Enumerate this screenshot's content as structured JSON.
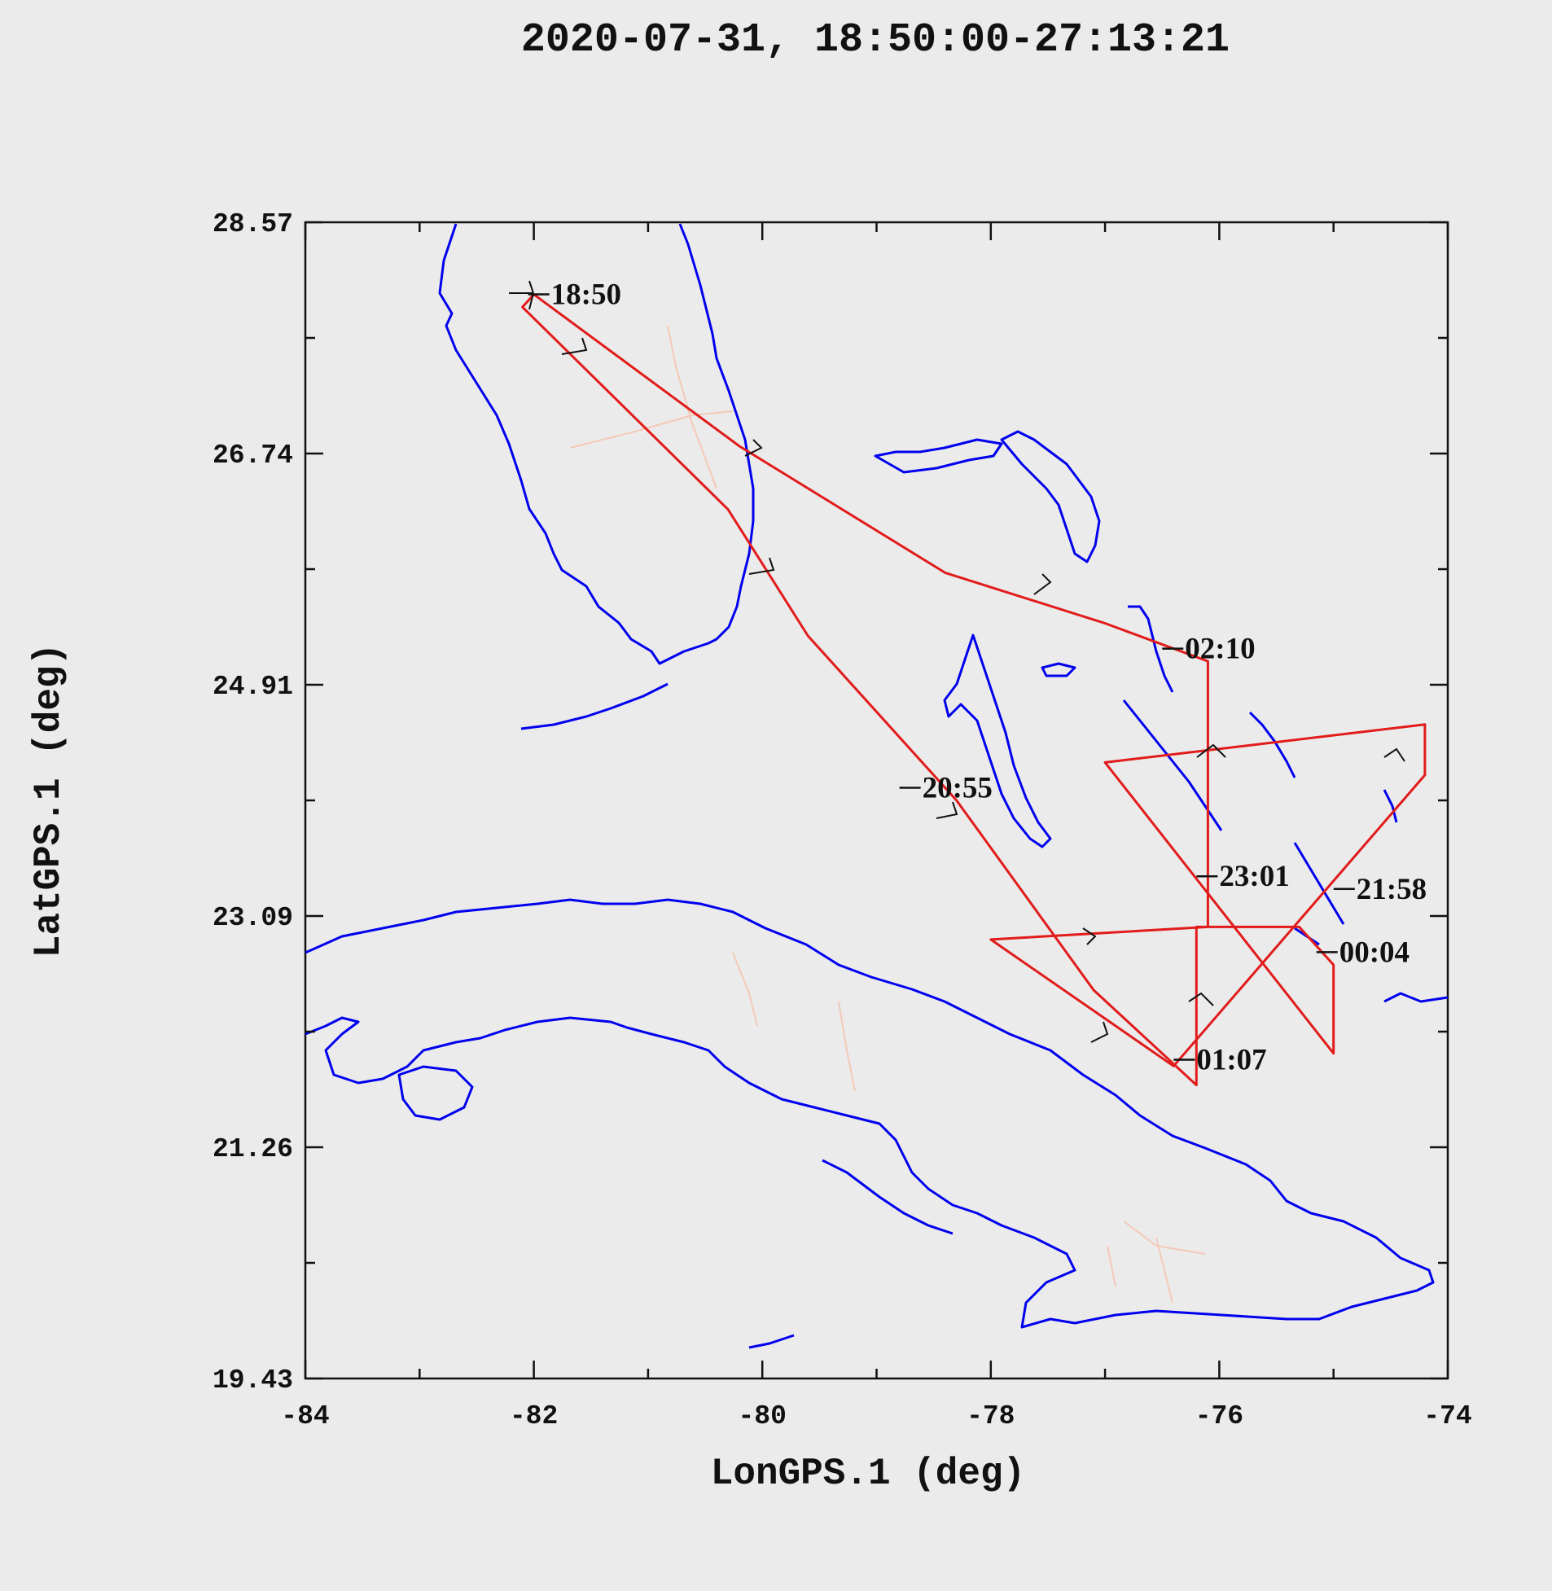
{
  "title": "2020-07-31, 18:50:00-27:13:21",
  "chart_data": {
    "type": "map",
    "xlabel": "LonGPS.1 (deg)",
    "ylabel": "LatGPS.1 (deg)",
    "xlim": [
      -84,
      -74
    ],
    "ylim": [
      19.43,
      28.57
    ],
    "x_ticks": [
      "-84",
      "-82",
      "-80",
      "-78",
      "-76",
      "-74"
    ],
    "y_ticks": [
      "28.57",
      "26.74",
      "24.91",
      "23.09",
      "21.26",
      "19.43"
    ],
    "time_labels": [
      {
        "text": "18:50",
        "lon": -81.85,
        "lat": 28.0
      },
      {
        "text": "02:10",
        "lon": -76.3,
        "lat": 25.2
      },
      {
        "text": "20:55",
        "lon": -78.6,
        "lat": 24.1
      },
      {
        "text": "23:01",
        "lon": -76.0,
        "lat": 23.4
      },
      {
        "text": "21:58",
        "lon": -74.8,
        "lat": 23.3
      },
      {
        "text": "00:04",
        "lon": -74.95,
        "lat": 22.8
      },
      {
        "text": "01:07",
        "lon": -76.2,
        "lat": 21.95
      }
    ],
    "flight_track": [
      [
        -82.0,
        28.0
      ],
      [
        -80.2,
        26.8
      ],
      [
        -78.4,
        25.8
      ],
      [
        -77.0,
        25.4
      ],
      [
        -76.1,
        25.1
      ],
      [
        -76.1,
        23.0
      ],
      [
        -78.0,
        22.9
      ],
      [
        -76.4,
        21.9
      ],
      [
        -74.2,
        24.2
      ],
      [
        -74.2,
        24.6
      ],
      [
        -77.0,
        24.3
      ],
      [
        -75.0,
        22.0
      ],
      [
        -75.0,
        22.7
      ],
      [
        -75.3,
        23.0
      ],
      [
        -76.2,
        23.0
      ],
      [
        -76.2,
        21.75
      ],
      [
        -77.1,
        22.5
      ],
      [
        -78.3,
        24.0
      ],
      [
        -79.6,
        25.3
      ],
      [
        -80.3,
        26.3
      ],
      [
        -82.1,
        27.9
      ],
      [
        -82.0,
        28.0
      ]
    ]
  },
  "colors": {
    "background": "#ebebeb",
    "coastline": "#0000ee",
    "track": "#e21b1b",
    "rivers": "#f4c9b8"
  }
}
